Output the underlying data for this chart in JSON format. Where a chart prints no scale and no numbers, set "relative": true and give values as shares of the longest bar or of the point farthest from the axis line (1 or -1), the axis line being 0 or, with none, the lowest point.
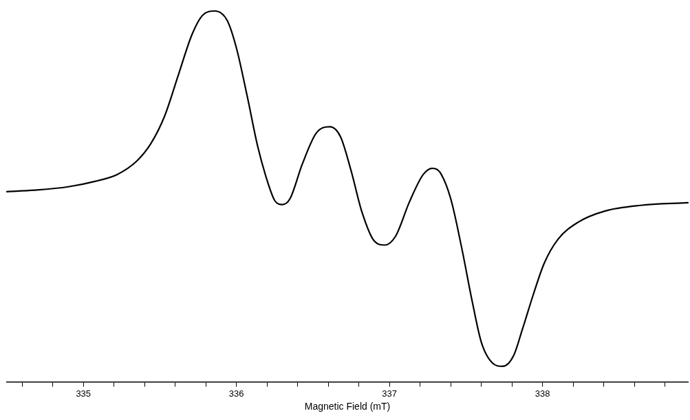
{
  "chart_data": {
    "type": "line",
    "relative": true,
    "xlabel": "Magnetic Field (mT)",
    "xlim": [
      334.5,
      338.95
    ],
    "xticks": [
      {
        "value": 334.6,
        "label": null
      },
      {
        "value": 334.8,
        "label": null
      },
      335,
      {
        "value": 335.2,
        "label": null
      },
      {
        "value": 335.4,
        "label": null
      },
      {
        "value": 335.6,
        "label": null
      },
      {
        "value": 335.8,
        "label": null
      },
      336,
      {
        "value": 336.2,
        "label": null
      },
      {
        "value": 336.4,
        "label": null
      },
      {
        "value": 336.6,
        "label": null
      },
      {
        "value": 336.8,
        "label": null
      },
      337,
      {
        "value": 337.2,
        "label": null
      },
      {
        "value": 337.4,
        "label": null
      },
      {
        "value": 337.6,
        "label": null
      },
      {
        "value": 337.8,
        "label": null
      },
      338,
      {
        "value": 338.2,
        "label": null
      },
      {
        "value": 338.4,
        "label": null
      },
      {
        "value": 338.6,
        "label": null
      },
      {
        "value": 338.8,
        "label": null
      }
    ],
    "tick_labels": "x",
    "grid": false,
    "legend": false,
    "marker": "none",
    "line_style": "solid",
    "series": [
      {
        "color": "#000000",
        "x": [
          334.5,
          334.68,
          334.9,
          335.08,
          335.22,
          335.35,
          335.44,
          335.53,
          335.62,
          335.71,
          335.78,
          335.86,
          335.94,
          336.0,
          336.07,
          336.14,
          336.21,
          336.25,
          336.3,
          336.35,
          336.43,
          336.52,
          336.61,
          336.68,
          336.75,
          336.82,
          336.9,
          336.97,
          337.04,
          337.13,
          337.22,
          337.28,
          337.33,
          337.4,
          337.47,
          337.54,
          337.6,
          337.67,
          337.74,
          337.81,
          337.87,
          337.94,
          338.01,
          338.1,
          338.23,
          338.41,
          338.64,
          338.95
        ],
        "values": [
          0.513,
          0.517,
          0.526,
          0.541,
          0.559,
          0.596,
          0.642,
          0.716,
          0.827,
          0.937,
          0.989,
          1.0,
          0.974,
          0.9,
          0.771,
          0.633,
          0.531,
          0.489,
          0.478,
          0.494,
          0.587,
          0.67,
          0.688,
          0.661,
          0.568,
          0.458,
          0.38,
          0.369,
          0.393,
          0.485,
          0.559,
          0.576,
          0.565,
          0.494,
          0.365,
          0.218,
          0.107,
          0.052,
          0.042,
          0.07,
          0.144,
          0.236,
          0.319,
          0.384,
          0.43,
          0.461,
          0.476,
          0.483
        ]
      }
    ]
  }
}
